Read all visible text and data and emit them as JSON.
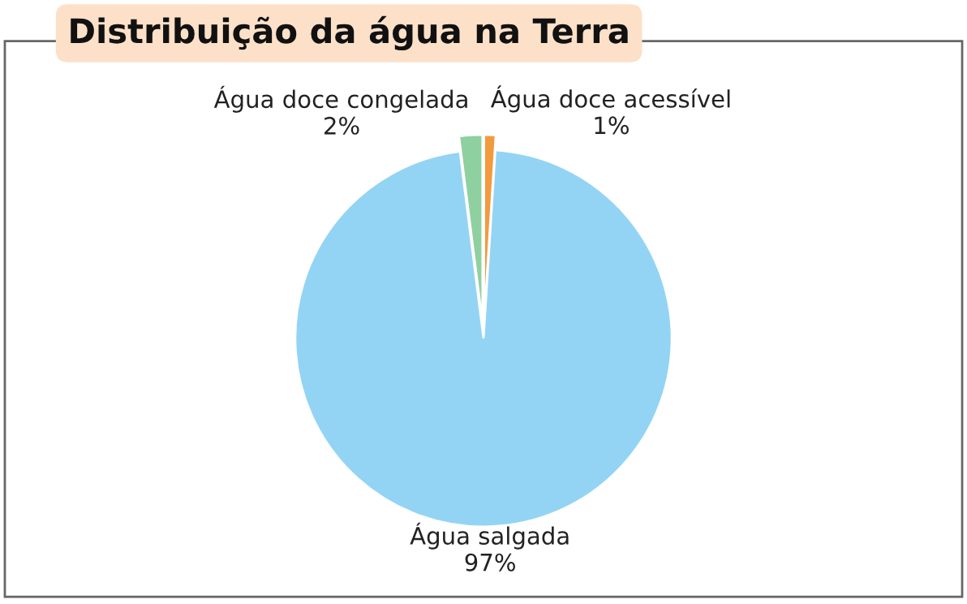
{
  "chart_data": {
    "type": "pie",
    "title": "Distribuição da água na Terra",
    "categories": [
      "Água doce acessível",
      "Água salgada",
      "Água doce congelada"
    ],
    "values": [
      1,
      97,
      2
    ],
    "value_labels": [
      "1%",
      "97%",
      "2%"
    ],
    "colors": [
      "#f39a3e",
      "#93d4f5",
      "#8fd0a0"
    ]
  }
}
